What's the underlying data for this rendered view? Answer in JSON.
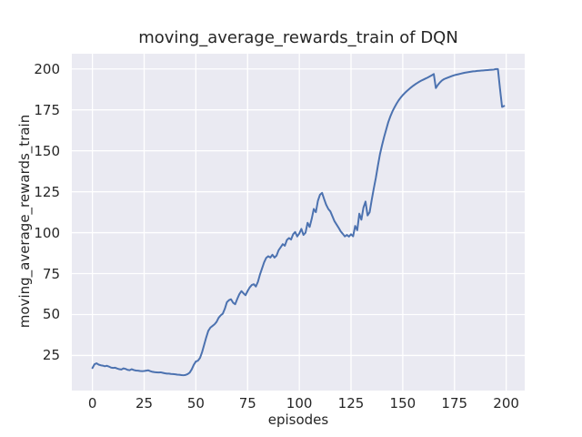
{
  "colors": {
    "figure_bg": "#ffffff",
    "plot_bg": "#eaeaf2",
    "grid": "#ffffff",
    "line": "#4c72b0",
    "text": "#262626"
  },
  "chart_data": {
    "type": "line",
    "title": "moving_average_rewards_train of DQN",
    "xlabel": "episodes",
    "ylabel": "moving_average_rewards_train",
    "legend": false,
    "grid": true,
    "x_ticks": [
      0,
      25,
      50,
      75,
      100,
      125,
      150,
      175,
      200
    ],
    "y_ticks": [
      25,
      50,
      75,
      100,
      125,
      150,
      175,
      200
    ],
    "xlim": [
      -9.95,
      208.95
    ],
    "ylim": [
      3.55,
      209.3
    ],
    "x": "episode index 0-199 (one value per episode)",
    "series": [
      {
        "name": "moving_average_rewards_train",
        "color": "#4c72b0",
        "values": [
          17.3,
          19.6,
          20.2,
          19.4,
          19.0,
          18.8,
          18.4,
          18.7,
          18.2,
          17.6,
          17.4,
          17.5,
          17.0,
          16.6,
          16.4,
          17.1,
          16.8,
          16.2,
          16.0,
          16.6,
          16.1,
          15.8,
          15.7,
          15.5,
          15.4,
          15.5,
          15.7,
          15.9,
          15.4,
          15.0,
          14.8,
          14.7,
          14.6,
          14.7,
          14.4,
          14.1,
          13.9,
          13.9,
          13.7,
          13.6,
          13.5,
          13.3,
          13.2,
          13.0,
          12.9,
          13.1,
          13.6,
          14.5,
          16.5,
          19.3,
          21.3,
          21.8,
          23.5,
          27.0,
          31.5,
          36.0,
          40.0,
          42.0,
          43.0,
          44.0,
          45.5,
          48.0,
          49.5,
          50.5,
          53.5,
          57.5,
          58.8,
          59.3,
          57.2,
          56.3,
          59.5,
          62.4,
          64.3,
          63.0,
          61.8,
          64.3,
          66.5,
          68.0,
          68.5,
          67.1,
          70.0,
          74.5,
          78.2,
          81.9,
          84.6,
          85.6,
          84.8,
          86.5,
          84.8,
          86.0,
          89.3,
          91.1,
          93.0,
          92.0,
          95.5,
          96.7,
          95.8,
          99.0,
          100.4,
          97.7,
          99.5,
          102.3,
          98.6,
          100.0,
          106.0,
          103.5,
          108.5,
          114.5,
          112.5,
          119.5,
          123.2,
          124.3,
          120.5,
          117.0,
          114.5,
          113.0,
          110.0,
          107.0,
          105.0,
          103.0,
          100.8,
          99.3,
          97.7,
          98.6,
          97.6,
          99.0,
          97.8,
          104.1,
          101.5,
          111.6,
          107.9,
          115.3,
          119.0,
          110.5,
          112.5,
          120.0,
          127.0,
          133.5,
          141.0,
          148.0,
          153.5,
          158.5,
          163.0,
          167.5,
          171.0,
          174.0,
          176.5,
          178.8,
          180.8,
          182.5,
          184.0,
          185.3,
          186.5,
          187.6,
          188.7,
          189.7,
          190.6,
          191.4,
          192.2,
          192.9,
          193.5,
          194.1,
          194.7,
          195.4,
          196.1,
          196.9,
          188.3,
          190.3,
          191.8,
          193.0,
          193.8,
          194.3,
          194.8,
          195.3,
          195.8,
          196.2,
          196.5,
          196.8,
          197.1,
          197.4,
          197.7,
          197.9,
          198.1,
          198.3,
          198.5,
          198.6,
          198.8,
          198.9,
          199.0,
          199.1,
          199.2,
          199.3,
          199.4,
          199.5,
          199.6,
          199.9,
          199.9,
          188.0,
          176.8,
          177.4
        ]
      }
    ]
  }
}
